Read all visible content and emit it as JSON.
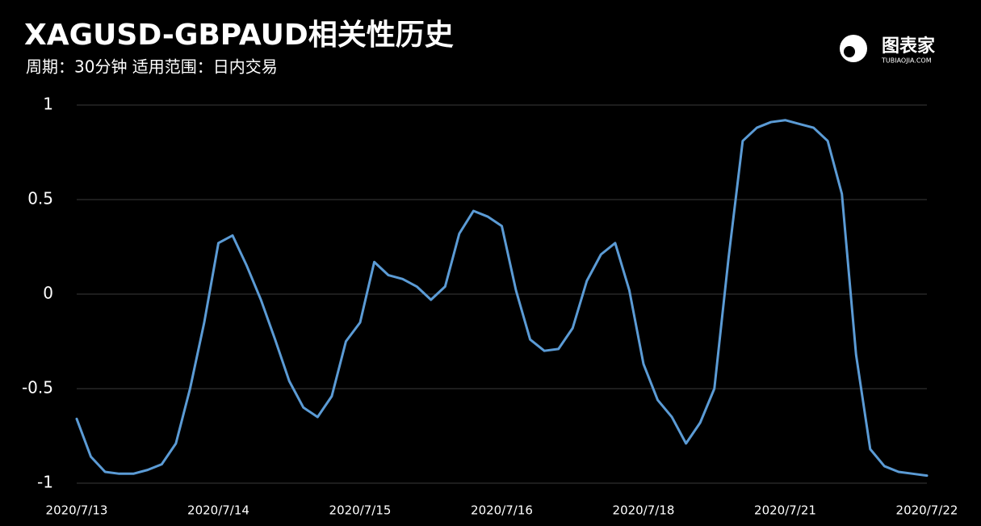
{
  "chart_data": {
    "type": "line",
    "title": "XAGUSD-GBPAUD相关性历史",
    "subtitle": "周期：30分钟 适用范围：日内交易",
    "logo": {
      "name": "图表家",
      "site": "TUBIAOJIA.COM"
    },
    "categories": [
      "2020/7/13",
      null,
      null,
      null,
      null,
      null,
      null,
      null,
      null,
      null,
      "2020/7/14",
      null,
      null,
      null,
      null,
      null,
      null,
      null,
      null,
      null,
      "2020/7/15",
      null,
      null,
      null,
      null,
      null,
      null,
      null,
      null,
      null,
      "2020/7/16",
      null,
      null,
      null,
      null,
      null,
      null,
      null,
      null,
      null,
      "2020/7/18",
      null,
      null,
      null,
      null,
      null,
      null,
      null,
      null,
      null,
      "2020/7/21",
      null,
      null,
      null,
      null,
      null,
      null,
      null,
      null,
      null,
      "2020/7/22"
    ],
    "values": [
      -0.66,
      -0.86,
      -0.94,
      -0.95,
      -0.95,
      -0.93,
      -0.9,
      -0.79,
      -0.5,
      -0.15,
      0.27,
      0.31,
      0.15,
      -0.03,
      -0.24,
      -0.46,
      -0.6,
      -0.65,
      -0.54,
      -0.25,
      -0.15,
      0.17,
      0.1,
      0.08,
      0.04,
      -0.03,
      0.04,
      0.32,
      0.44,
      0.41,
      0.36,
      0.02,
      -0.24,
      -0.3,
      -0.29,
      -0.18,
      0.07,
      0.21,
      0.27,
      0.02,
      -0.37,
      -0.56,
      -0.65,
      -0.79,
      -0.68,
      -0.5,
      0.19,
      0.81,
      0.88,
      0.91,
      0.92,
      0.9,
      0.88,
      0.81,
      0.53,
      -0.32,
      -0.82,
      -0.91,
      -0.94,
      -0.95,
      -0.96
    ],
    "color": "#5b9bd5",
    "ylim": [
      -1,
      1
    ],
    "yticks": [
      -1,
      -0.5,
      0,
      0.5,
      1
    ],
    "grid": true
  }
}
